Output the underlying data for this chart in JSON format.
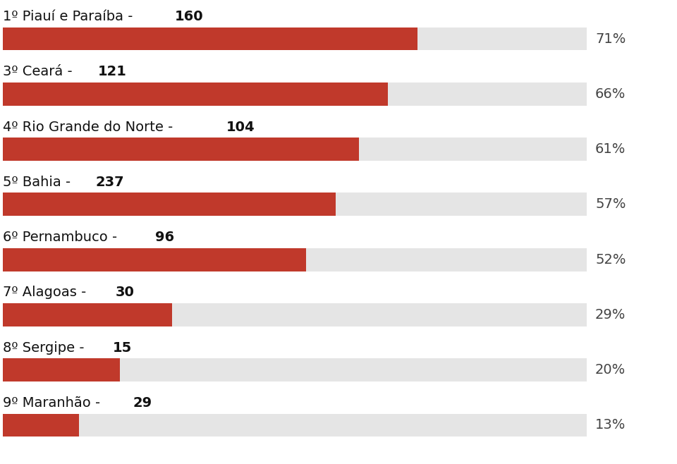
{
  "bars": [
    {
      "label_rank": "1º",
      "label_state": "Piauí e Paraíba",
      "label_num": "160",
      "pct": 71
    },
    {
      "label_rank": "3º",
      "label_state": "Ceará",
      "label_num": "121",
      "pct": 66
    },
    {
      "label_rank": "4º",
      "label_state": "Rio Grande do Norte",
      "label_num": "104",
      "pct": 61
    },
    {
      "label_rank": "5º",
      "label_state": "Bahia",
      "label_num": "237",
      "pct": 57
    },
    {
      "label_rank": "6º",
      "label_state": "Pernambuco",
      "label_num": "96",
      "pct": 52
    },
    {
      "label_rank": "7º",
      "label_state": "Alagoas",
      "label_num": "30",
      "pct": 29
    },
    {
      "label_rank": "8º",
      "label_state": "Sergipe",
      "label_num": "15",
      "pct": 20
    },
    {
      "label_rank": "9º",
      "label_state": "Maranhão",
      "label_num": "29",
      "pct": 13
    }
  ],
  "bar_color": "#c0392b",
  "bg_bar_color": "#e5e5e5",
  "background_color": "#ffffff",
  "bar_height": 0.42,
  "max_val": 100,
  "pct_label_color": "#444444",
  "text_color": "#111111",
  "label_fontsize": 14,
  "pct_fontsize": 14
}
